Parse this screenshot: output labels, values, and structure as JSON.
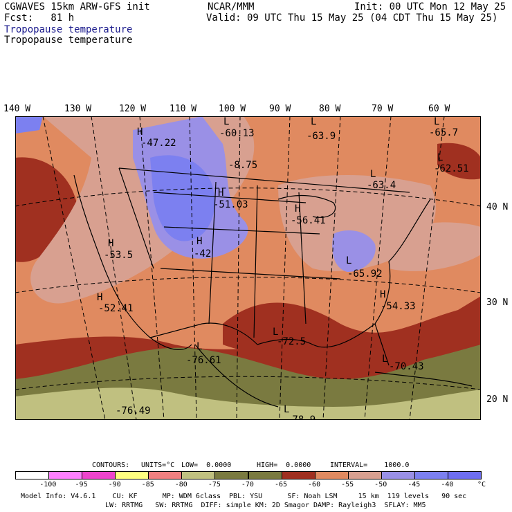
{
  "header": {
    "line1_left": "CGWAVES 15km ARW-GFS init",
    "line1_center": "NCAR/MMM",
    "line1_right": "Init: 00 UTC Mon 12 May 25",
    "line2_left": "Fcst:   81 h",
    "line2_right": "Valid: 09 UTC Thu 15 May 25 (04 CDT Thu 15 May 25)",
    "field_title_1": "Tropopause temperature",
    "field_title_2": "Tropopause temperature"
  },
  "lon_labels": [
    "140 W",
    "130 W",
    "120 W",
    "110 W",
    "100 W",
    "90 W",
    "80 W",
    "70 W",
    "60 W"
  ],
  "lat_labels": [
    "40 N",
    "30 N",
    "20 N"
  ],
  "map_labels": [
    {
      "type": "H",
      "value": "-47.22"
    },
    {
      "type": "L",
      "value": "-60.13"
    },
    {
      "type": "L",
      "value": "-63.9"
    },
    {
      "type": "L",
      "value": "-65.7"
    },
    {
      "type": "",
      "value": "-8.75"
    },
    {
      "type": "L",
      "value": "-62.51"
    },
    {
      "type": "L",
      "value": "-63.4"
    },
    {
      "type": "H",
      "value": "-51.03"
    },
    {
      "type": "H",
      "value": "-56.41"
    },
    {
      "type": "H",
      "value": "-53.5"
    },
    {
      "type": "H",
      "value": "-42"
    },
    {
      "type": "L",
      "value": "-65.92"
    },
    {
      "type": "H",
      "value": "-52.41"
    },
    {
      "type": "H",
      "value": "-54.33"
    },
    {
      "type": "L",
      "value": "-72.5"
    },
    {
      "type": "L",
      "value": "-76.61"
    },
    {
      "type": "L",
      "value": "-70.43"
    },
    {
      "type": "L",
      "value": "-76.49"
    },
    {
      "type": "L",
      "value": "-78.9"
    }
  ],
  "colors": {
    "c_gt_m40": "#6e6ef0",
    "c_m40_m45": "#7c80f0",
    "c_m45_m50": "#9a90e6",
    "c_m50_m55": "#d8a090",
    "c_m55_m60": "#e08a60",
    "c_m60_m65": "#a03020",
    "c_m65_m70": "#7a7a40",
    "c_m70_m75": "#c0c080",
    "c_dark_mid": "#d27c55"
  },
  "contours": {
    "label": "CONTOURS:",
    "units": "UNITS=°C",
    "low": "LOW=  0.0000",
    "high": "HIGH=  0.0000",
    "interval": "INTERVAL=    1000.0"
  },
  "colorbar": {
    "swatches": [
      "#ffffff",
      "#ff80ff",
      "#ee44cc",
      "#ffff80",
      "#f08080",
      "#c0c080",
      "#7a7a40",
      "#7a7a40",
      "#a03020",
      "#e08a60",
      "#d8a090",
      "#9a90e6",
      "#7c80f0",
      "#6e6ef0"
    ],
    "ticks": [
      "-100",
      "-95",
      "-90",
      "-85",
      "-80",
      "-75",
      "-70",
      "-65",
      "-60",
      "-55",
      "-50",
      "-45",
      "-40"
    ],
    "unit": "°C"
  },
  "footer": {
    "line1": "Model Info: V4.6.1    CU: KF      MP: WDM 6class  PBL: YSU      SF: Noah LSM     15 km  119 levels   90 sec",
    "line2": "LW: RRTMG   SW: RRTMG  DIFF: simple KM: 2D Smagor DAMP: Rayleigh3  SFLAY: MM5"
  }
}
